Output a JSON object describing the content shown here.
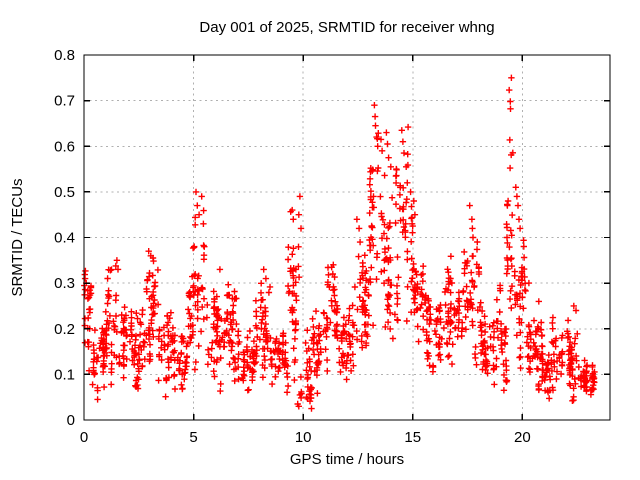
{
  "chart_data": {
    "type": "scatter",
    "title": "Day 001 of 2025, SRMTID for receiver whng",
    "xlabel": "GPS time / hours",
    "ylabel": "SRMTID / TECUs",
    "xlim": [
      0,
      24
    ],
    "ylim": [
      0,
      0.8
    ],
    "xticks": [
      0,
      5,
      10,
      15,
      20
    ],
    "xtick_labels": [
      "0",
      "5",
      "10",
      "15",
      "20"
    ],
    "yticks": [
      0,
      0.1,
      0.2,
      0.3,
      0.4,
      0.5,
      0.6,
      0.7,
      0.8
    ],
    "ytick_labels": [
      "0",
      "0.1",
      "0.2",
      "0.3",
      "0.4",
      "0.5",
      "0.6",
      "0.7",
      "0.8"
    ],
    "grid": true,
    "legend": "none",
    "marker": "plus",
    "colors": {
      "points": "#ff0000",
      "axis": "#000000",
      "grid": "#b0b0b0",
      "background": "#ffffff"
    },
    "seed": 20250101,
    "band_segments": [
      [
        0.0,
        0.3,
        0.2,
        0.12,
        26
      ],
      [
        0.3,
        0.9,
        0.14,
        0.08,
        40
      ],
      [
        0.9,
        1.6,
        0.21,
        0.13,
        48
      ],
      [
        1.6,
        2.4,
        0.19,
        0.1,
        52
      ],
      [
        2.4,
        2.8,
        0.16,
        0.09,
        26
      ],
      [
        2.8,
        3.4,
        0.25,
        0.11,
        40
      ],
      [
        3.4,
        4.1,
        0.15,
        0.09,
        45
      ],
      [
        4.1,
        4.7,
        0.13,
        0.07,
        38
      ],
      [
        4.7,
        5.0,
        0.2,
        0.12,
        20
      ],
      [
        5.0,
        5.6,
        0.31,
        0.17,
        36
      ],
      [
        5.6,
        6.2,
        0.2,
        0.1,
        40
      ],
      [
        6.2,
        7.2,
        0.2,
        0.1,
        62
      ],
      [
        7.2,
        7.8,
        0.13,
        0.07,
        38
      ],
      [
        7.8,
        8.5,
        0.21,
        0.11,
        45
      ],
      [
        8.5,
        9.3,
        0.13,
        0.08,
        50
      ],
      [
        9.3,
        9.9,
        0.28,
        0.18,
        40
      ],
      [
        9.9,
        10.4,
        0.11,
        0.08,
        30
      ],
      [
        10.4,
        11.1,
        0.17,
        0.09,
        45
      ],
      [
        11.1,
        11.6,
        0.22,
        0.11,
        32
      ],
      [
        11.6,
        12.3,
        0.15,
        0.09,
        45
      ],
      [
        12.3,
        13.0,
        0.26,
        0.14,
        45
      ],
      [
        13.0,
        13.7,
        0.42,
        0.21,
        48
      ],
      [
        13.7,
        14.3,
        0.34,
        0.16,
        40
      ],
      [
        14.3,
        15.0,
        0.38,
        0.19,
        45
      ],
      [
        15.0,
        15.6,
        0.26,
        0.12,
        38
      ],
      [
        15.6,
        16.5,
        0.2,
        0.1,
        55
      ],
      [
        16.5,
        17.3,
        0.22,
        0.11,
        50
      ],
      [
        17.3,
        18.1,
        0.27,
        0.14,
        50
      ],
      [
        18.1,
        18.8,
        0.16,
        0.09,
        45
      ],
      [
        18.8,
        19.3,
        0.18,
        0.1,
        32
      ],
      [
        19.3,
        19.7,
        0.38,
        0.22,
        26
      ],
      [
        19.7,
        20.2,
        0.28,
        0.14,
        34
      ],
      [
        20.2,
        20.9,
        0.15,
        0.08,
        48
      ],
      [
        20.9,
        21.7,
        0.13,
        0.07,
        55
      ],
      [
        21.7,
        22.6,
        0.13,
        0.08,
        60
      ],
      [
        22.6,
        23.3,
        0.09,
        0.05,
        48
      ]
    ],
    "peak_points": [
      [
        0.05,
        0.31
      ],
      [
        0.1,
        0.3
      ],
      [
        1.5,
        0.35
      ],
      [
        1.55,
        0.33
      ],
      [
        2.95,
        0.37
      ],
      [
        3.05,
        0.36
      ],
      [
        3.15,
        0.355
      ],
      [
        5.11,
        0.5
      ],
      [
        5.37,
        0.49
      ],
      [
        5.17,
        0.47
      ],
      [
        5.25,
        0.45
      ],
      [
        5.45,
        0.43
      ],
      [
        6.2,
        0.33
      ],
      [
        8.2,
        0.33
      ],
      [
        8.3,
        0.31
      ],
      [
        9.5,
        0.46
      ],
      [
        9.55,
        0.44
      ],
      [
        9.85,
        0.49
      ],
      [
        9.8,
        0.45
      ],
      [
        9.9,
        0.42
      ],
      [
        9.75,
        0.035
      ],
      [
        9.8,
        0.03
      ],
      [
        9.85,
        0.055
      ],
      [
        10.15,
        0.05
      ],
      [
        11.3,
        0.335
      ],
      [
        11.35,
        0.32
      ],
      [
        12.45,
        0.44
      ],
      [
        12.55,
        0.42
      ],
      [
        12.6,
        0.39
      ],
      [
        13.25,
        0.69
      ],
      [
        13.28,
        0.665
      ],
      [
        13.3,
        0.645
      ],
      [
        13.35,
        0.62
      ],
      [
        13.4,
        0.6
      ],
      [
        13.55,
        0.615
      ],
      [
        13.6,
        0.59
      ],
      [
        13.8,
        0.63
      ],
      [
        13.85,
        0.605
      ],
      [
        13.9,
        0.575
      ],
      [
        14.0,
        0.555
      ],
      [
        14.5,
        0.635
      ],
      [
        14.55,
        0.61
      ],
      [
        14.6,
        0.585
      ],
      [
        14.7,
        0.555
      ],
      [
        14.75,
        0.52
      ],
      [
        14.9,
        0.5
      ],
      [
        15.05,
        0.48
      ],
      [
        15.1,
        0.45
      ],
      [
        17.6,
        0.47
      ],
      [
        17.7,
        0.44
      ],
      [
        17.72,
        0.42
      ],
      [
        17.75,
        0.4
      ],
      [
        19.5,
        0.75
      ],
      [
        19.4,
        0.723
      ],
      [
        19.45,
        0.698
      ],
      [
        19.46,
        0.682
      ],
      [
        19.43,
        0.614
      ],
      [
        19.49,
        0.581
      ],
      [
        19.44,
        0.552
      ],
      [
        19.35,
        0.48
      ],
      [
        19.3,
        0.4
      ],
      [
        19.7,
        0.51
      ],
      [
        19.75,
        0.49
      ],
      [
        19.8,
        0.47
      ],
      [
        19.85,
        0.44
      ],
      [
        19.9,
        0.42
      ],
      [
        20.3,
        0.3
      ],
      [
        20.75,
        0.26
      ],
      [
        22.35,
        0.25
      ],
      [
        22.45,
        0.24
      ],
      [
        23.2,
        0.12
      ],
      [
        23.25,
        0.09
      ]
    ]
  }
}
